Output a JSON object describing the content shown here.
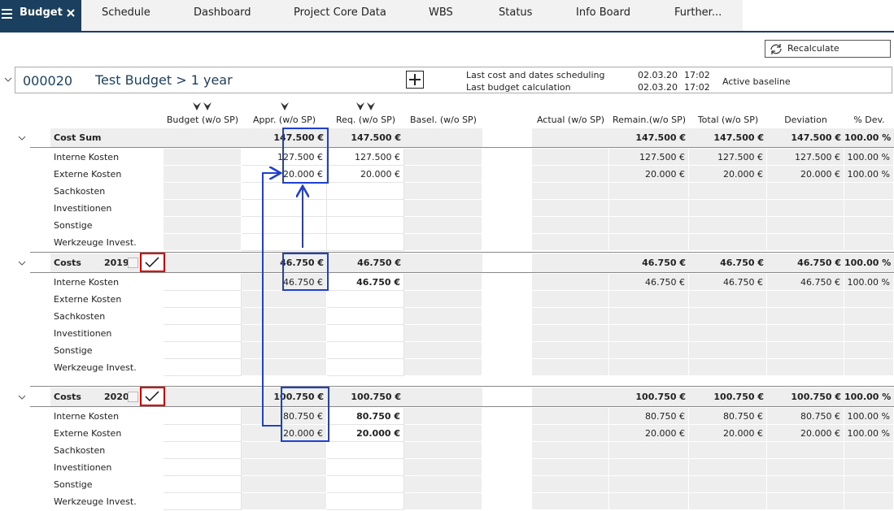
{
  "tabs": [
    "Budget",
    "Schedule",
    "Dashboard",
    "Project Core Data",
    "WBS",
    "Status",
    "Info Board",
    "Further..."
  ],
  "recalculate": "Recalculate",
  "project": {
    "id": "000020",
    "name": "Test Budget > 1 year",
    "info": [
      {
        "label": "Last cost and dates scheduling",
        "date": "02.03.20",
        "time": "17:02"
      },
      {
        "label": "Last budget calculation",
        "date": "02.03.20",
        "time": "17:02"
      }
    ],
    "baseline": "Active baseline"
  },
  "columns": [
    "Budget (w/o SP)",
    "Appr. (w/o SP)",
    "Req. (w/o SP)",
    "Basel. (w/o SP)",
    "Actual (w/o SP)",
    "Remain.(w/o SP)",
    "Total (w/o SP)",
    "Deviation",
    "% Dev."
  ],
  "sections": [
    {
      "label": "Cost Sum",
      "cells": [
        null,
        "147.500 €",
        "147.500 €",
        null,
        null,
        "147.500 €",
        "147.500 €",
        "147.500 €",
        "100.00 %"
      ],
      "rows": [
        {
          "label": "Interne Kosten",
          "cells": [
            null,
            "127.500 €",
            "127.500 €",
            null,
            null,
            "127.500 €",
            "127.500 €",
            "127.500 €",
            "100.00 %"
          ]
        },
        {
          "label": "Externe Kosten",
          "cells": [
            null,
            "20.000 €",
            "20.000 €",
            null,
            null,
            "20.000 €",
            "20.000 €",
            "20.000 €",
            "100.00 %"
          ]
        },
        {
          "label": "Sachkosten",
          "cells": [
            null,
            null,
            null,
            null,
            null,
            null,
            null,
            null,
            null
          ]
        },
        {
          "label": "Investitionen",
          "cells": [
            null,
            null,
            null,
            null,
            null,
            null,
            null,
            null,
            null
          ]
        },
        {
          "label": "Sonstige",
          "cells": [
            null,
            null,
            null,
            null,
            null,
            null,
            null,
            null,
            null
          ]
        },
        {
          "label": "Werkzeuge Invest.",
          "cells": [
            null,
            null,
            null,
            null,
            null,
            null,
            null,
            null,
            null
          ]
        }
      ]
    },
    {
      "label": "Costs",
      "year": "2019",
      "cells": [
        null,
        "46.750 €",
        "46.750 €",
        null,
        null,
        "46.750 €",
        "46.750 €",
        "46.750 €",
        "100.00 %"
      ],
      "rows": [
        {
          "label": "Interne Kosten",
          "cells": [
            null,
            "46.750 €",
            "46.750 €",
            null,
            null,
            "46.750 €",
            "46.750 €",
            "46.750 €",
            "100.00 %"
          ]
        },
        {
          "label": "Externe Kosten",
          "cells": [
            null,
            null,
            null,
            null,
            null,
            null,
            null,
            null,
            null
          ]
        },
        {
          "label": "Sachkosten",
          "cells": [
            null,
            null,
            null,
            null,
            null,
            null,
            null,
            null,
            null
          ]
        },
        {
          "label": "Investitionen",
          "cells": [
            null,
            null,
            null,
            null,
            null,
            null,
            null,
            null,
            null
          ]
        },
        {
          "label": "Sonstige",
          "cells": [
            null,
            null,
            null,
            null,
            null,
            null,
            null,
            null,
            null
          ]
        },
        {
          "label": "Werkzeuge Invest.",
          "cells": [
            null,
            null,
            null,
            null,
            null,
            null,
            null,
            null,
            null
          ]
        }
      ]
    },
    {
      "label": "Costs",
      "year": "2020",
      "cells": [
        null,
        "100.750 €",
        "100.750 €",
        null,
        null,
        "100.750 €",
        "100.750 €",
        "100.750 €",
        "100.00 %"
      ],
      "rows": [
        {
          "label": "Interne Kosten",
          "cells": [
            null,
            "80.750 €",
            "80.750 €",
            null,
            null,
            "80.750 €",
            "80.750 €",
            "80.750 €",
            "100.00 %"
          ]
        },
        {
          "label": "Externe Kosten",
          "cells": [
            null,
            "20.000 €",
            "20.000 €",
            null,
            null,
            "20.000 €",
            "20.000 €",
            "20.000 €",
            "100.00 %"
          ]
        },
        {
          "label": "Sachkosten",
          "cells": [
            null,
            null,
            null,
            null,
            null,
            null,
            null,
            null,
            null
          ]
        },
        {
          "label": "Investitionen",
          "cells": [
            null,
            null,
            null,
            null,
            null,
            null,
            null,
            null,
            null
          ]
        },
        {
          "label": "Sonstige",
          "cells": [
            null,
            null,
            null,
            null,
            null,
            null,
            null,
            null,
            null
          ]
        },
        {
          "label": "Werkzeuge Invest.",
          "cells": [
            null,
            null,
            null,
            null,
            null,
            null,
            null,
            null,
            null
          ]
        }
      ]
    }
  ]
}
